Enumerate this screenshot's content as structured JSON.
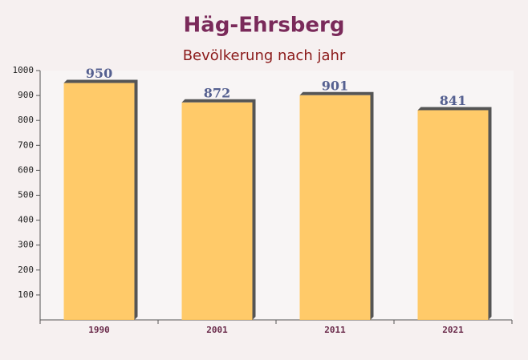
{
  "chart_data": {
    "type": "bar",
    "title": "Häg-Ehrsberg",
    "subtitle": "Bevölkerung nach jahr",
    "categories": [
      "1990",
      "2001",
      "2011",
      "2021"
    ],
    "values": [
      950,
      872,
      901,
      841
    ],
    "color": "#ffc55a",
    "ylim": [
      0,
      1000
    ],
    "yticks": [
      100,
      200,
      300,
      400,
      500,
      600,
      700,
      800,
      900,
      1000
    ],
    "grid": false
  }
}
